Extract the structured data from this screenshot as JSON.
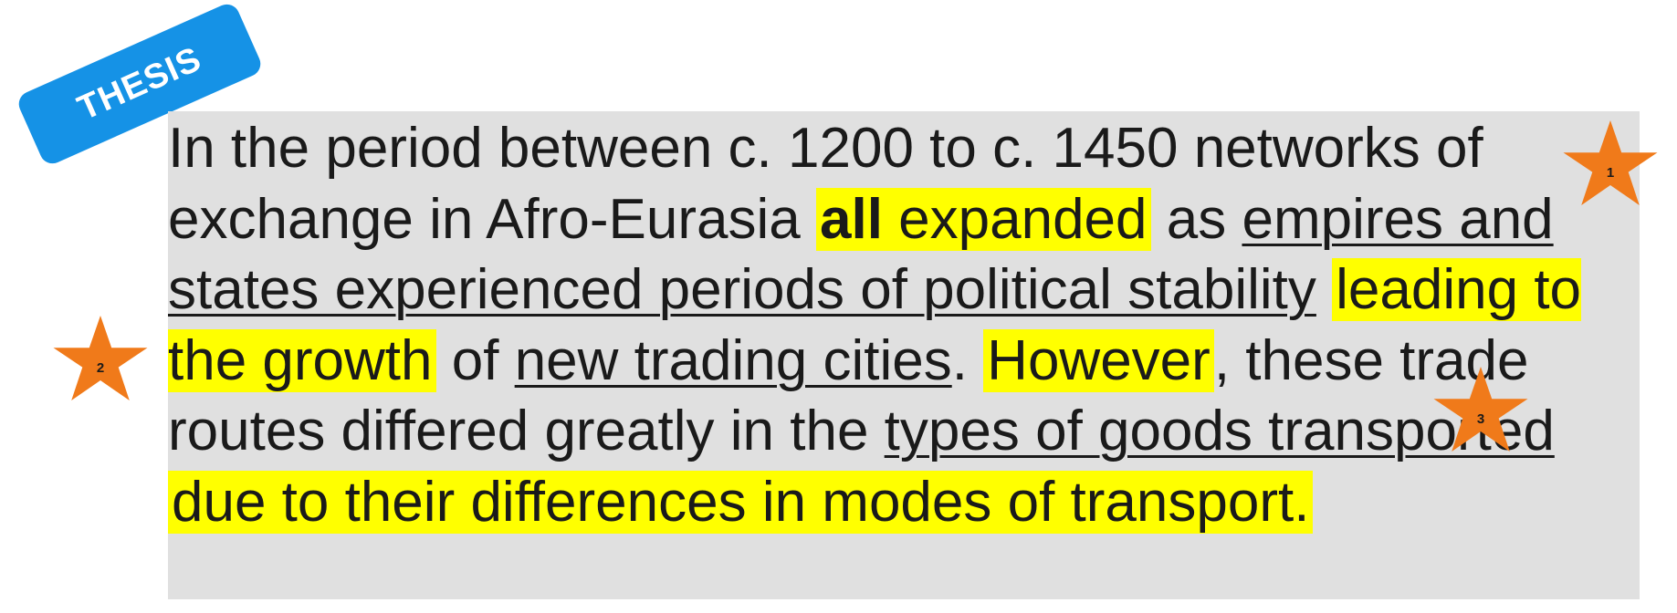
{
  "tag": {
    "label": "THESIS",
    "color": "#1592e6"
  },
  "panel": {
    "background": "#e0e0e0",
    "highlight_color": "#ffff00"
  },
  "thesis": {
    "s01": "In the period between c. 1200 to c. 1450 networks of exchange in Afro-Eurasia ",
    "s02": "all",
    "s03": " expanded",
    "s04": " as ",
    "s05": "empires and states experienced periods of political stability",
    "s06": " ",
    "s07": "leading to the growth",
    "s08": " of ",
    "s09": "new trading cities",
    "s10": ". ",
    "s11": "However",
    "s12": ", these trade routes differed greatly in the ",
    "s13": "types of goods transported",
    "s14": " ",
    "s15": "due to their differences in modes of transport."
  },
  "stars": [
    {
      "number": "1",
      "color": "#f07a1a"
    },
    {
      "number": "2",
      "color": "#f07a1a"
    },
    {
      "number": "3",
      "color": "#f07a1a"
    }
  ]
}
